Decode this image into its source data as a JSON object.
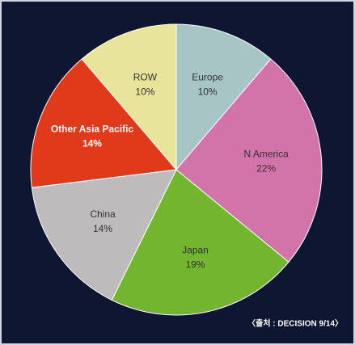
{
  "chart_data": {
    "type": "pie",
    "categories": [
      "Europe",
      "N America",
      "Japan",
      "China",
      "Other Asia Pacific",
      "ROW"
    ],
    "values": [
      10,
      22,
      19,
      14,
      14,
      10
    ],
    "value_labels": [
      "10%",
      "22%",
      "19%",
      "14%",
      "14%",
      "10%"
    ],
    "colors": [
      "#a8c5c6",
      "#d273a9",
      "#72b52f",
      "#bdbbbb",
      "#e03a1b",
      "#e8e49b"
    ],
    "label_colors": [
      "#333333",
      "#333333",
      "#333333",
      "#333333",
      "#ffffff",
      "#333333"
    ],
    "source": "〈출처 : DECISION 9/14〉"
  }
}
